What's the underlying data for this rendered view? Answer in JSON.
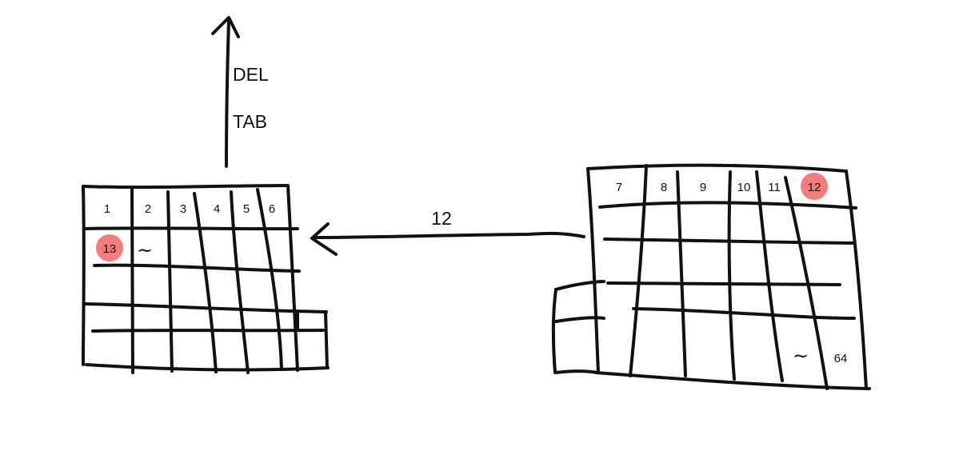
{
  "up_arrow": {
    "labels": [
      "DEL",
      "TAB"
    ]
  },
  "left_grid": {
    "header_numbers": [
      "1",
      "2",
      "3",
      "4",
      "5",
      "6"
    ],
    "marked_cell": "13",
    "tilde": "~"
  },
  "right_grid": {
    "header_numbers": [
      "7",
      "8",
      "9",
      "10",
      "11"
    ],
    "marked_cell": "12",
    "tilde": "~",
    "last_cell": "64"
  },
  "connector": {
    "label": "12"
  },
  "colors": {
    "highlight": "#f47c7c",
    "ink": "#111111"
  }
}
